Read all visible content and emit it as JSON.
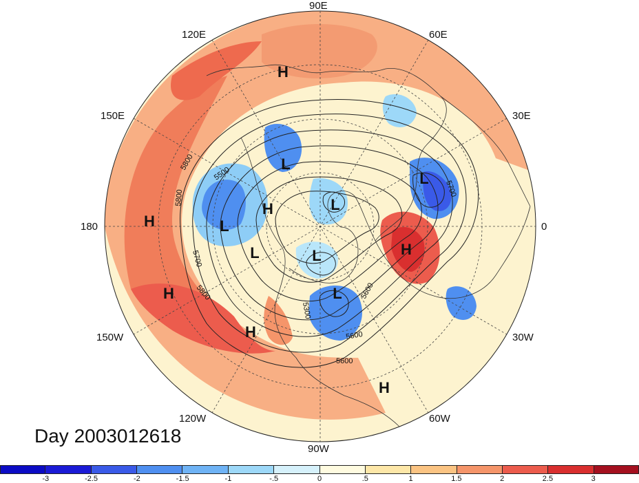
{
  "title": "Day 2003012618",
  "longitude_labels": {
    "n": "90E",
    "ne": "60E",
    "ene": "30E",
    "e": "0",
    "ese": "30W",
    "se": "60W",
    "s": "90W",
    "sw": "120W",
    "wsw": "150W",
    "w": "180",
    "wnw": "150E",
    "nw": "120E"
  },
  "pressure_systems": [
    {
      "type": "H",
      "id": "h1"
    },
    {
      "type": "H",
      "id": "h2"
    },
    {
      "type": "H",
      "id": "h3"
    },
    {
      "type": "H",
      "id": "h4"
    },
    {
      "type": "H",
      "id": "h5"
    },
    {
      "type": "H",
      "id": "h6"
    },
    {
      "type": "H",
      "id": "h7"
    },
    {
      "type": "L",
      "id": "l1"
    },
    {
      "type": "L",
      "id": "l2"
    },
    {
      "type": "L",
      "id": "l3"
    },
    {
      "type": "L",
      "id": "l4"
    },
    {
      "type": "L",
      "id": "l5"
    },
    {
      "type": "L",
      "id": "l6"
    },
    {
      "type": "L",
      "id": "l7"
    }
  ],
  "contour_labels": [
    "5800",
    "5500",
    "5800",
    "5700",
    "5800",
    "5700",
    "5600",
    "5600",
    "5600",
    "5300"
  ],
  "colorbar": {
    "colors": [
      "#1a1ad6",
      "#3a5ae8",
      "#4f8ff0",
      "#6fb3f5",
      "#9dd8f8",
      "#d6f1fb",
      "#fffbe0",
      "#fde7a8",
      "#fbc483",
      "#f5956a",
      "#ec5c4d",
      "#d92f2f",
      "#a4101f"
    ],
    "ticks": [
      "-3",
      "-2.5",
      "-2",
      "-1.5",
      "-1",
      "-.5",
      "0",
      ".5",
      "1",
      "1.5",
      "2",
      "2.5",
      "3"
    ]
  }
}
